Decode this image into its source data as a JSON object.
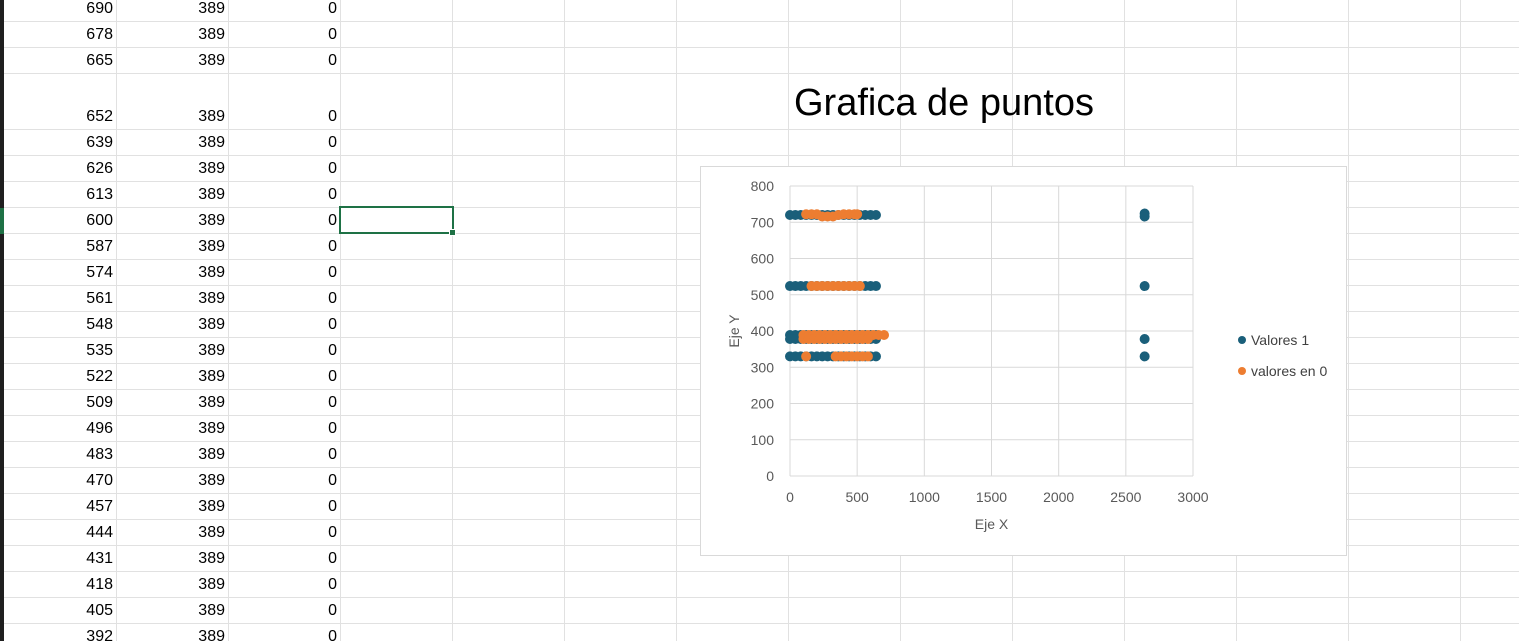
{
  "spreadsheet": {
    "rows": [
      [
        "690",
        "389",
        "0"
      ],
      [
        "678",
        "389",
        "0"
      ],
      [
        "665",
        "389",
        "0"
      ],
      [
        "652",
        "389",
        "0"
      ],
      [
        "639",
        "389",
        "0"
      ],
      [
        "626",
        "389",
        "0"
      ],
      [
        "613",
        "389",
        "0"
      ],
      [
        "600",
        "389",
        "0"
      ],
      [
        "587",
        "389",
        "0"
      ],
      [
        "574",
        "389",
        "0"
      ],
      [
        "561",
        "389",
        "0"
      ],
      [
        "548",
        "389",
        "0"
      ],
      [
        "535",
        "389",
        "0"
      ],
      [
        "522",
        "389",
        "0"
      ],
      [
        "509",
        "389",
        "0"
      ],
      [
        "496",
        "389",
        "0"
      ],
      [
        "483",
        "389",
        "0"
      ],
      [
        "470",
        "389",
        "0"
      ],
      [
        "457",
        "389",
        "0"
      ],
      [
        "444",
        "389",
        "0"
      ],
      [
        "431",
        "389",
        "0"
      ],
      [
        "418",
        "389",
        "0"
      ],
      [
        "405",
        "389",
        "0"
      ],
      [
        "392",
        "389",
        "0"
      ]
    ],
    "accent_color": "#1e7145"
  },
  "chart_data": {
    "type": "scatter",
    "title": "Grafica de puntos",
    "xlabel": "Eje X",
    "ylabel": "Eje Y",
    "xlim": [
      0,
      3000
    ],
    "ylim": [
      0,
      800
    ],
    "x_ticks": [
      "0",
      "500",
      "1000",
      "1500",
      "2000",
      "2500",
      "3000"
    ],
    "y_ticks": [
      "0",
      "100",
      "200",
      "300",
      "400",
      "500",
      "600",
      "700",
      "800"
    ],
    "grid": true,
    "legend_position": "right",
    "series": [
      {
        "name": "Valores 1",
        "color": "#1a5f7a",
        "points": [
          [
            0,
            720
          ],
          [
            40,
            720
          ],
          [
            80,
            720
          ],
          [
            120,
            720
          ],
          [
            160,
            720
          ],
          [
            200,
            720
          ],
          [
            240,
            720
          ],
          [
            280,
            720
          ],
          [
            320,
            720
          ],
          [
            360,
            720
          ],
          [
            400,
            720
          ],
          [
            440,
            720
          ],
          [
            480,
            720
          ],
          [
            520,
            720
          ],
          [
            560,
            720
          ],
          [
            600,
            720
          ],
          [
            640,
            720
          ],
          [
            0,
            524
          ],
          [
            40,
            524
          ],
          [
            80,
            524
          ],
          [
            120,
            524
          ],
          [
            160,
            524
          ],
          [
            200,
            524
          ],
          [
            240,
            524
          ],
          [
            280,
            524
          ],
          [
            320,
            524
          ],
          [
            360,
            524
          ],
          [
            400,
            524
          ],
          [
            440,
            524
          ],
          [
            480,
            524
          ],
          [
            520,
            524
          ],
          [
            560,
            524
          ],
          [
            600,
            524
          ],
          [
            640,
            524
          ],
          [
            0,
            389
          ],
          [
            40,
            389
          ],
          [
            80,
            389
          ],
          [
            120,
            389
          ],
          [
            160,
            389
          ],
          [
            200,
            389
          ],
          [
            240,
            389
          ],
          [
            280,
            389
          ],
          [
            320,
            389
          ],
          [
            360,
            389
          ],
          [
            400,
            389
          ],
          [
            440,
            389
          ],
          [
            480,
            389
          ],
          [
            520,
            389
          ],
          [
            560,
            389
          ],
          [
            600,
            389
          ],
          [
            640,
            389
          ],
          [
            0,
            378
          ],
          [
            40,
            378
          ],
          [
            80,
            378
          ],
          [
            120,
            378
          ],
          [
            160,
            378
          ],
          [
            200,
            378
          ],
          [
            240,
            378
          ],
          [
            280,
            378
          ],
          [
            320,
            378
          ],
          [
            360,
            378
          ],
          [
            400,
            378
          ],
          [
            440,
            378
          ],
          [
            480,
            378
          ],
          [
            520,
            378
          ],
          [
            560,
            378
          ],
          [
            600,
            378
          ],
          [
            640,
            378
          ],
          [
            0,
            330
          ],
          [
            40,
            330
          ],
          [
            80,
            330
          ],
          [
            120,
            330
          ],
          [
            160,
            330
          ],
          [
            200,
            330
          ],
          [
            240,
            330
          ],
          [
            280,
            330
          ],
          [
            320,
            330
          ],
          [
            360,
            330
          ],
          [
            400,
            330
          ],
          [
            440,
            330
          ],
          [
            480,
            330
          ],
          [
            520,
            330
          ],
          [
            560,
            330
          ],
          [
            600,
            330
          ],
          [
            640,
            330
          ],
          [
            2640,
            724
          ],
          [
            2640,
            716
          ],
          [
            2640,
            524
          ],
          [
            2640,
            378
          ],
          [
            2640,
            330
          ]
        ]
      },
      {
        "name": "valores en 0",
        "color": "#ed7d31",
        "points": [
          [
            120,
            722
          ],
          [
            160,
            722
          ],
          [
            200,
            722
          ],
          [
            240,
            716
          ],
          [
            280,
            716
          ],
          [
            320,
            716
          ],
          [
            360,
            720
          ],
          [
            400,
            722
          ],
          [
            440,
            722
          ],
          [
            480,
            722
          ],
          [
            500,
            722
          ],
          [
            160,
            524
          ],
          [
            200,
            524
          ],
          [
            240,
            524
          ],
          [
            280,
            524
          ],
          [
            320,
            524
          ],
          [
            360,
            524
          ],
          [
            400,
            524
          ],
          [
            440,
            524
          ],
          [
            480,
            524
          ],
          [
            520,
            524
          ],
          [
            100,
            389
          ],
          [
            140,
            389
          ],
          [
            180,
            389
          ],
          [
            220,
            389
          ],
          [
            260,
            389
          ],
          [
            300,
            389
          ],
          [
            340,
            389
          ],
          [
            380,
            389
          ],
          [
            420,
            389
          ],
          [
            460,
            389
          ],
          [
            500,
            389
          ],
          [
            540,
            389
          ],
          [
            580,
            389
          ],
          [
            620,
            389
          ],
          [
            660,
            389
          ],
          [
            700,
            389
          ],
          [
            100,
            378
          ],
          [
            140,
            378
          ],
          [
            180,
            378
          ],
          [
            220,
            378
          ],
          [
            260,
            378
          ],
          [
            300,
            378
          ],
          [
            340,
            378
          ],
          [
            380,
            378
          ],
          [
            420,
            378
          ],
          [
            460,
            378
          ],
          [
            500,
            378
          ],
          [
            540,
            378
          ],
          [
            580,
            378
          ],
          [
            120,
            330
          ],
          [
            340,
            330
          ],
          [
            380,
            330
          ],
          [
            420,
            330
          ],
          [
            460,
            330
          ],
          [
            500,
            330
          ],
          [
            540,
            330
          ],
          [
            580,
            330
          ]
        ]
      }
    ]
  }
}
